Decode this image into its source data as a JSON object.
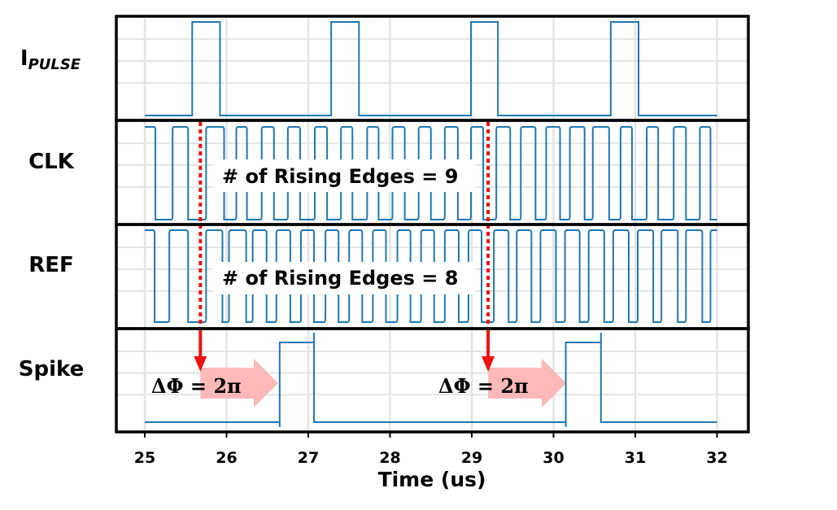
{
  "chart_data": {
    "type": "line",
    "xlabel": "Time (us)",
    "xlim": [
      25,
      32
    ],
    "x_ticks": [
      "25",
      "26",
      "27",
      "28",
      "29",
      "30",
      "31",
      "32"
    ],
    "grid": true,
    "panels": [
      {
        "name": "I",
        "subscript": "PULSE",
        "pulses": [
          [
            25.58,
            25.92
          ],
          [
            27.28,
            27.62
          ],
          [
            28.99,
            29.32
          ],
          [
            30.7,
            31.04
          ]
        ]
      },
      {
        "name": "CLK",
        "high_intervals": [
          [
            25.0,
            25.13
          ],
          [
            25.34,
            25.53
          ],
          [
            25.75,
            25.97
          ],
          [
            26.12,
            26.25
          ],
          [
            26.43,
            26.58
          ],
          [
            26.75,
            26.9
          ],
          [
            27.08,
            27.23
          ],
          [
            27.4,
            27.54
          ],
          [
            27.72,
            27.86
          ],
          [
            28.03,
            28.18
          ],
          [
            28.35,
            28.5
          ],
          [
            28.67,
            28.83
          ],
          [
            28.99,
            29.14
          ],
          [
            29.3,
            29.47
          ],
          [
            29.6,
            29.78
          ],
          [
            29.91,
            30.08
          ],
          [
            30.2,
            30.38
          ],
          [
            30.48,
            30.68
          ],
          [
            30.82,
            30.96
          ],
          [
            31.14,
            31.28
          ],
          [
            31.47,
            31.62
          ],
          [
            31.79,
            31.92
          ]
        ]
      },
      {
        "name": "REF",
        "high_intervals": [
          [
            25.0,
            25.12
          ],
          [
            25.3,
            25.53
          ],
          [
            25.75,
            25.95
          ],
          [
            26.03,
            26.24
          ],
          [
            26.32,
            26.49
          ],
          [
            26.61,
            26.78
          ],
          [
            26.91,
            27.07
          ],
          [
            27.21,
            27.37
          ],
          [
            27.5,
            27.66
          ],
          [
            27.79,
            27.95
          ],
          [
            28.09,
            28.25
          ],
          [
            28.38,
            28.54
          ],
          [
            28.67,
            28.84
          ],
          [
            28.96,
            29.12
          ],
          [
            29.27,
            29.45
          ],
          [
            29.55,
            29.73
          ],
          [
            29.84,
            30.03
          ],
          [
            30.14,
            30.32
          ],
          [
            30.43,
            30.62
          ],
          [
            30.73,
            30.92
          ],
          [
            31.03,
            31.22
          ],
          [
            31.32,
            31.52
          ],
          [
            31.62,
            31.82
          ],
          [
            31.92,
            32.0
          ]
        ]
      },
      {
        "name": "Spike",
        "pulses": [
          [
            26.65,
            27.07
          ],
          [
            30.15,
            30.58
          ]
        ]
      }
    ],
    "annotations": {
      "clk_edges": "# of Rising Edges = 9",
      "ref_edges": "# of Rising Edges = 8",
      "phase_1": "ΔΦ = 2π",
      "phase_2": "ΔΦ = 2π"
    },
    "markers_x": [
      25.68,
      29.2
    ],
    "colors": {
      "signal": "#1f77b4",
      "marker": "#ee1111",
      "arrow": "#ffb8b8",
      "grid": "#e4e4e4",
      "frame": "#000000"
    }
  }
}
